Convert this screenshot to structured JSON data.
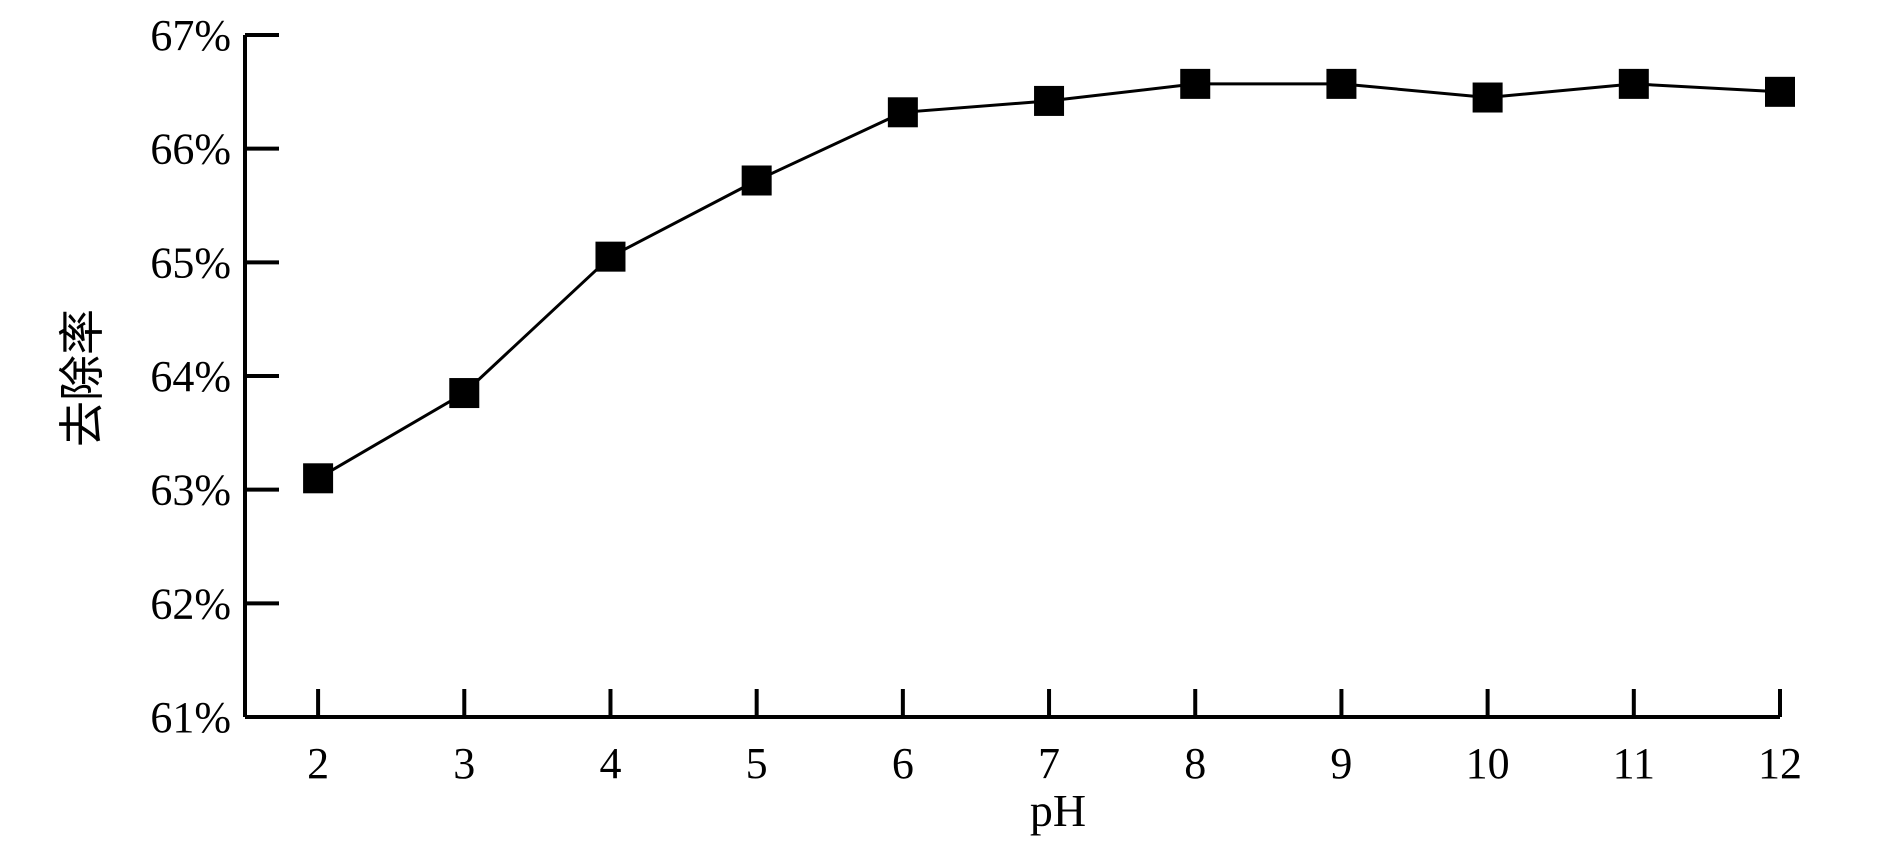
{
  "chart_data": {
    "type": "line",
    "title": "",
    "xlabel": "pH",
    "ylabel": "去除率",
    "x": [
      2,
      3,
      4,
      5,
      6,
      7,
      8,
      9,
      10,
      11,
      12
    ],
    "series": [
      {
        "values": [
          63.1,
          63.85,
          65.05,
          65.72,
          66.32,
          66.42,
          66.57,
          66.57,
          66.45,
          66.57,
          66.5
        ],
        "marker": "square",
        "color": "#000000"
      }
    ],
    "xticks": [
      "2",
      "3",
      "4",
      "5",
      "6",
      "7",
      "8",
      "9",
      "10",
      "11",
      "12"
    ],
    "yticks": [
      "61%",
      "62%",
      "63%",
      "64%",
      "65%",
      "66%",
      "67%"
    ],
    "xlim": [
      1.5,
      12
    ],
    "ylim": [
      61,
      67
    ],
    "grid": false,
    "legend": "none"
  }
}
